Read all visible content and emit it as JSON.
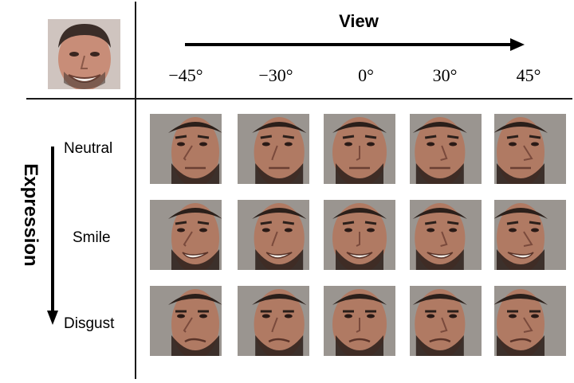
{
  "view_axis": {
    "title": "View",
    "angles": [
      "−45°",
      "−30°",
      "0°",
      "30°",
      "45°"
    ]
  },
  "expression_axis": {
    "title": "Expression",
    "rows": [
      "Neutral",
      "Smile",
      "Disgust"
    ]
  },
  "reference_face": {
    "icon": "reference-face-photo"
  },
  "grid": {
    "row_count": 3,
    "column_count": 5,
    "cell_icon": "face-photo"
  },
  "colors": {
    "skin": "#b07a63",
    "hair": "#2b1f1a",
    "background": "#9a9590",
    "lines": "#1a1a1a"
  }
}
